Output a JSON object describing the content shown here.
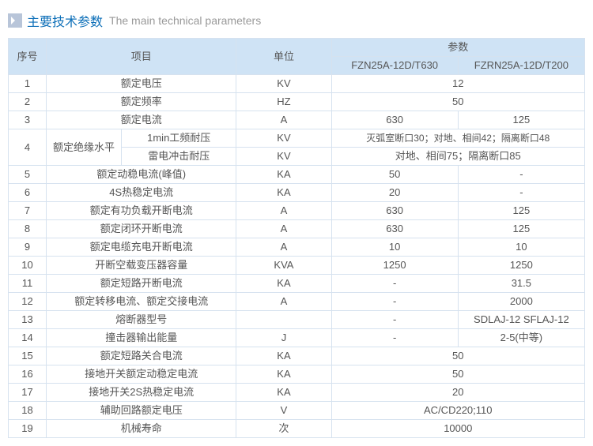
{
  "header": {
    "title_cn": "主要技术参数",
    "title_en": "The main technical parameters"
  },
  "columns": {
    "seq": "序号",
    "item": "项目",
    "unit": "单位",
    "params": "参数",
    "p1": "FZN25A-12D/T630",
    "p2": "FZRN25A-12D/T200"
  },
  "row4": {
    "item_main": "额定绝缘水平",
    "item_a": "1min工频耐压",
    "item_b": "雷电冲击耐压",
    "unit_a": "KV",
    "unit_b": "KV",
    "val_a": "灭弧室断口30；对地、相间42；隔离断口48",
    "val_b": "对地、相间75；隔离断口85"
  },
  "rows": [
    {
      "seq": "1",
      "item": "额定电压",
      "unit": "KV",
      "span": true,
      "val": "12"
    },
    {
      "seq": "2",
      "item": "额定频率",
      "unit": "HZ",
      "span": true,
      "val": "50"
    },
    {
      "seq": "3",
      "item": "额定电流",
      "unit": "A",
      "span": false,
      "v1": "630",
      "v2": "125"
    },
    {
      "row4": true,
      "seq": "4"
    },
    {
      "seq": "5",
      "item": "额定动稳电流(峰值)",
      "unit": "KA",
      "span": false,
      "v1": "50",
      "v2": "-"
    },
    {
      "seq": "6",
      "item": "4S热稳定电流",
      "unit": "KA",
      "span": false,
      "v1": "20",
      "v2": "-"
    },
    {
      "seq": "7",
      "item": "额定有功负载开断电流",
      "unit": "A",
      "span": false,
      "v1": "630",
      "v2": "125"
    },
    {
      "seq": "8",
      "item": "额定闭环开断电流",
      "unit": "A",
      "span": false,
      "v1": "630",
      "v2": "125"
    },
    {
      "seq": "9",
      "item": "额定电缆充电开断电流",
      "unit": "A",
      "span": false,
      "v1": "10",
      "v2": "10"
    },
    {
      "seq": "10",
      "item": "开断空载变压器容量",
      "unit": "KVA",
      "span": false,
      "v1": "1250",
      "v2": "1250"
    },
    {
      "seq": "11",
      "item": "额定短路开断电流",
      "unit": "KA",
      "span": false,
      "v1": "-",
      "v2": "31.5"
    },
    {
      "seq": "12",
      "item": "额定转移电流、额定交接电流",
      "unit": "A",
      "span": false,
      "v1": "-",
      "v2": "2000"
    },
    {
      "seq": "13",
      "item": "熔断器型号",
      "unit": "",
      "span": false,
      "v1": "-",
      "v2": "SDLAJ-12 SFLAJ-12"
    },
    {
      "seq": "14",
      "item": "撞击器输出能量",
      "unit": "J",
      "span": false,
      "v1": "-",
      "v2": "2-5(中等)"
    },
    {
      "seq": "15",
      "item": "额定短路关合电流",
      "unit": "KA",
      "span": true,
      "val": "50"
    },
    {
      "seq": "16",
      "item": "接地开关额定动稳定电流",
      "unit": "KA",
      "span": true,
      "val": "50"
    },
    {
      "seq": "17",
      "item": "接地开关2S热稳定电流",
      "unit": "KA",
      "span": true,
      "val": "20"
    },
    {
      "seq": "18",
      "item": "辅助回路额定电压",
      "unit": "V",
      "span": true,
      "val": "AC/CD220;110"
    },
    {
      "seq": "19",
      "item": "机械寿命",
      "unit": "次",
      "span": true,
      "val": "10000"
    }
  ]
}
